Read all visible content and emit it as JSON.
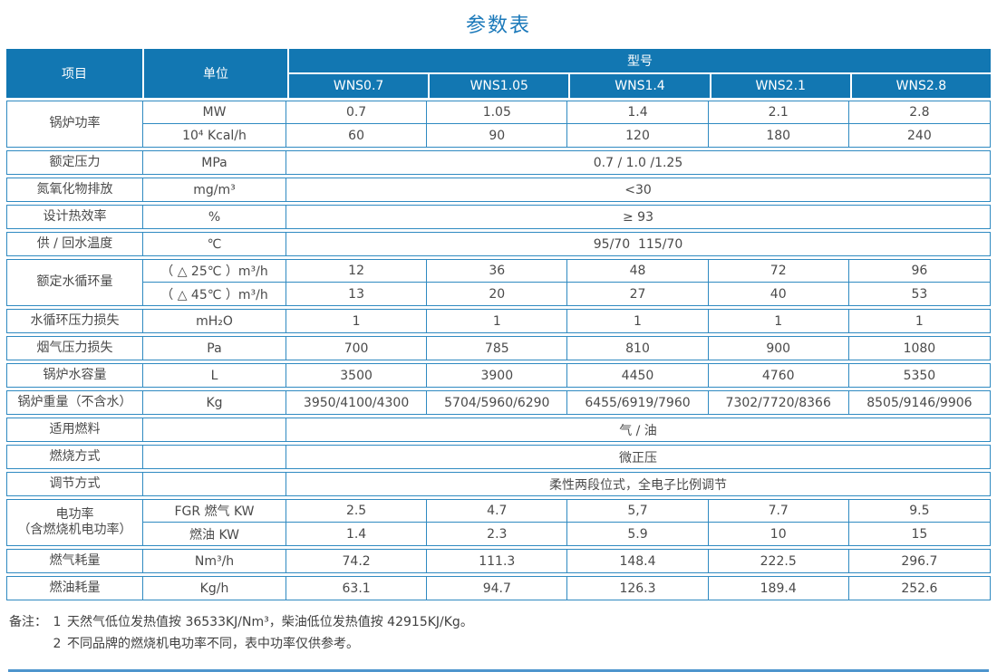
{
  "title": "参数表",
  "table": {
    "header": {
      "item": "项目",
      "unit": "单位",
      "model_group": "型号",
      "models": [
        "WNS0.7",
        "WNS1.05",
        "WNS1.4",
        "WNS2.1",
        "WNS2.8"
      ]
    },
    "rows": [
      {
        "type": "group",
        "label_lines": [
          "锅炉功率"
        ],
        "subrows": [
          {
            "unit": "MW",
            "values": [
              "0.7",
              "1.05",
              "1.4",
              "2.1",
              "2.8"
            ]
          },
          {
            "unit": "10⁴ Kcal/h",
            "values": [
              "60",
              "90",
              "120",
              "180",
              "240"
            ]
          }
        ]
      },
      {
        "type": "span",
        "label": "额定压力",
        "unit": "MPa",
        "value": "0.7 / 1.0 /1.25"
      },
      {
        "type": "span",
        "label": "氮氧化物排放",
        "unit": "mg/m³",
        "value": "<30"
      },
      {
        "type": "span",
        "label": "设计热效率",
        "unit": "%",
        "value": "≥ 93"
      },
      {
        "type": "span",
        "label": "供 / 回水温度",
        "unit": "℃",
        "value": "95/70  115/70"
      },
      {
        "type": "group",
        "label_lines": [
          "额定水循环量"
        ],
        "subrows": [
          {
            "unit": "（ △ 25℃ ）m³/h",
            "values": [
              "12",
              "36",
              "48",
              "72",
              "96"
            ]
          },
          {
            "unit": "（ △ 45℃ ）m³/h",
            "values": [
              "13",
              "20",
              "27",
              "40",
              "53"
            ]
          }
        ]
      },
      {
        "type": "normal",
        "label": "水循环压力损失",
        "unit": "mH₂O",
        "values": [
          "1",
          "1",
          "1",
          "1",
          "1"
        ]
      },
      {
        "type": "normal",
        "label": "烟气压力损失",
        "unit": "Pa",
        "values": [
          "700",
          "785",
          "810",
          "900",
          "1080"
        ]
      },
      {
        "type": "normal",
        "label": "锅炉水容量",
        "unit": "L",
        "values": [
          "3500",
          "3900",
          "4450",
          "4760",
          "5350"
        ]
      },
      {
        "type": "normal",
        "label": "锅炉重量（不含水）",
        "unit": "Kg",
        "values": [
          "3950/4100/4300",
          "5704/5960/6290",
          "6455/6919/7960",
          "7302/7720/8366",
          "8505/9146/9906"
        ]
      },
      {
        "type": "span",
        "label": "适用燃料",
        "unit": "",
        "value": "气 / 油"
      },
      {
        "type": "span",
        "label": "燃烧方式",
        "unit": "",
        "value": "微正压"
      },
      {
        "type": "span",
        "label": "调节方式",
        "unit": "",
        "value": "柔性两段位式，全电子比例调节"
      },
      {
        "type": "group",
        "label_lines": [
          "电功率",
          "（含燃烧机电功率）"
        ],
        "subrows": [
          {
            "unit": "FGR 燃气 KW",
            "values": [
              "2.5",
              "4.7",
              "5,7",
              "7.7",
              "9.5"
            ]
          },
          {
            "unit": "燃油 KW",
            "values": [
              "1.4",
              "2.3",
              "5.9",
              "10",
              "15"
            ]
          }
        ]
      },
      {
        "type": "normal",
        "label": "燃气耗量",
        "unit": "Nm³/h",
        "values": [
          "74.2",
          "111.3",
          "148.4",
          "222.5",
          "296.7"
        ]
      },
      {
        "type": "normal",
        "label": "燃油耗量",
        "unit": "Kg/h",
        "values": [
          "63.1",
          "94.7",
          "126.3",
          "189.4",
          "252.6"
        ]
      }
    ]
  },
  "notes": {
    "prefix": "备注：",
    "items": [
      {
        "num": "1",
        "text": "天然气低位发热值按 36533KJ/Nm³，柴油低位发热值按 42915KJ/Kg。"
      },
      {
        "num": "2",
        "text": "不同品牌的燃烧机电功率不同，表中功率仅供参考。"
      }
    ]
  },
  "colors": {
    "header_bg": "#1277b2",
    "border": "#2f8ac1",
    "title": "#1b79ba",
    "body_text": "#4a4a4a",
    "bottom_rule": "#4e95cd"
  }
}
